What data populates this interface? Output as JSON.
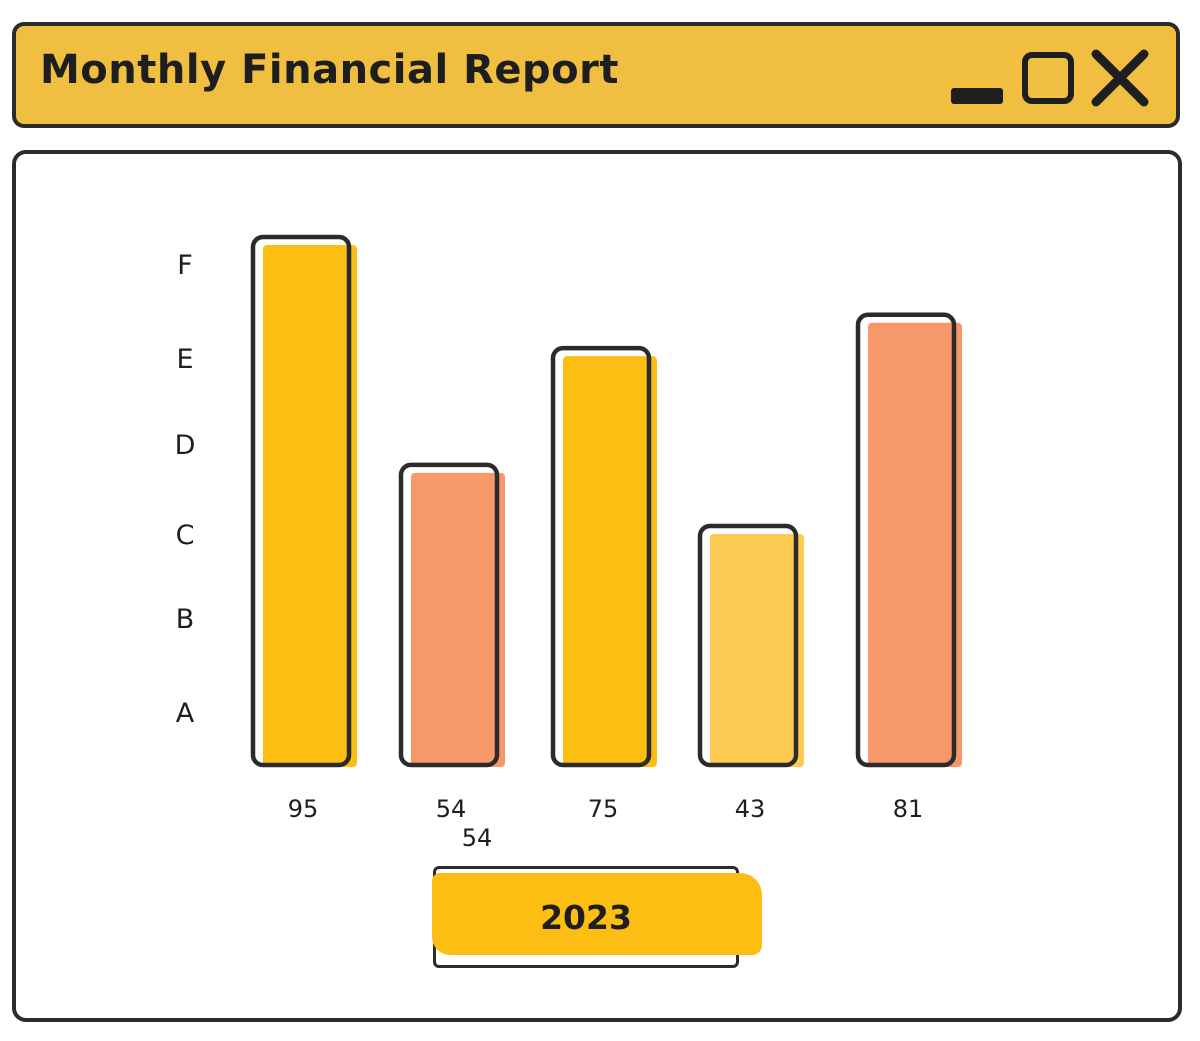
{
  "window": {
    "title": "Monthly Financial Report",
    "controls": {
      "minimize": "minimize-icon",
      "maximize": "maximize-icon",
      "close": "close-icon"
    },
    "title_bar_color": "#f0bf42"
  },
  "chart_data": {
    "type": "bar",
    "title": "",
    "xlabel": "",
    "ylabel": "",
    "y_tick_labels": [
      "A",
      "B",
      "C",
      "D",
      "E",
      "F"
    ],
    "ylim": [
      0,
      100
    ],
    "grid": false,
    "legend": "none",
    "categories": [
      "95",
      "54",
      "75",
      "43",
      "81"
    ],
    "values": [
      95,
      54,
      75,
      43,
      81
    ],
    "extra_label": "54",
    "bar_colors": [
      "#fcbe13",
      "#f7986a",
      "#fcbe13",
      "#fdcb52",
      "#f7986a"
    ]
  },
  "year_button": {
    "label": "2023"
  }
}
